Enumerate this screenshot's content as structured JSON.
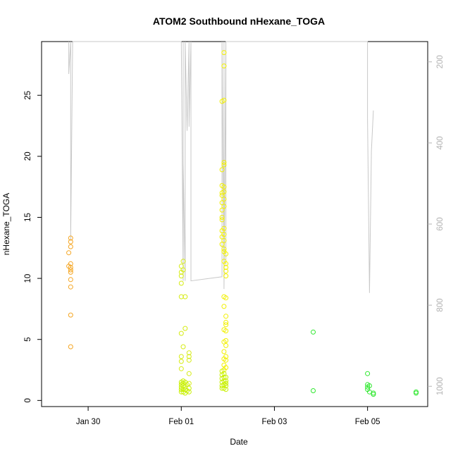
{
  "chart_data": {
    "type": "scatter",
    "title": "ATOM2 Southbound nHexane_TOGA",
    "xlabel": "Date",
    "ylabel": "nHexane_TOGA",
    "x_range": [
      "2017-01-29 00:00",
      "2017-02-06 07:00"
    ],
    "y_range": [
      -0.5,
      29.4
    ],
    "y_ticks": [
      0,
      5,
      10,
      15,
      20,
      25
    ],
    "x_ticks": [
      {
        "label": "Jan 30",
        "date": "2017-01-30 00:00"
      },
      {
        "label": "Feb 01",
        "date": "2017-02-01 00:00"
      },
      {
        "label": "Feb 03",
        "date": "2017-02-03 00:00"
      },
      {
        "label": "Feb 05",
        "date": "2017-02-05 00:00"
      }
    ],
    "right_axis": {
      "range": [
        1050,
        150
      ],
      "ticks": [
        200,
        400,
        600,
        800,
        1000
      ],
      "color": "#b3b3b3"
    },
    "grid": false,
    "marker": "open-circle",
    "series": [
      {
        "color": "#f5a623",
        "points": [
          [
            "2017-01-29 14:00",
            12.1
          ],
          [
            "2017-01-29 14:00",
            11.0
          ],
          [
            "2017-01-29 15:00",
            13.3
          ],
          [
            "2017-01-29 15:00",
            13.0
          ],
          [
            "2017-01-29 15:00",
            12.6
          ],
          [
            "2017-01-29 15:00",
            11.2
          ],
          [
            "2017-01-29 15:00",
            10.9
          ],
          [
            "2017-01-29 15:00",
            10.7
          ],
          [
            "2017-01-29 15:00",
            10.5
          ],
          [
            "2017-01-29 15:00",
            9.9
          ],
          [
            "2017-01-29 15:00",
            9.3
          ],
          [
            "2017-01-29 15:00",
            7.0
          ],
          [
            "2017-01-29 15:00",
            4.4
          ]
        ]
      },
      {
        "color": "#d6ec14",
        "points": [
          [
            "2017-02-01 00:00",
            11.0
          ],
          [
            "2017-02-01 01:00",
            10.7
          ],
          [
            "2017-02-01 00:00",
            10.5
          ],
          [
            "2017-02-01 00:00",
            10.2
          ],
          [
            "2017-02-01 00:00",
            9.6
          ],
          [
            "2017-02-01 00:00",
            8.5
          ],
          [
            "2017-02-01 02:00",
            8.5
          ],
          [
            "2017-02-01 01:00",
            11.4
          ],
          [
            "2017-02-01 00:00",
            5.5
          ],
          [
            "2017-02-01 02:00",
            5.9
          ],
          [
            "2017-02-01 01:00",
            4.4
          ],
          [
            "2017-02-01 00:00",
            3.6
          ],
          [
            "2017-02-01 00:00",
            3.2
          ],
          [
            "2017-02-01 00:00",
            2.6
          ],
          [
            "2017-02-01 04:00",
            3.9
          ],
          [
            "2017-02-01 04:00",
            3.6
          ],
          [
            "2017-02-01 04:00",
            3.3
          ],
          [
            "2017-02-01 04:00",
            2.2
          ],
          [
            "2017-02-01 04:00",
            1.4
          ]
        ]
      },
      {
        "color": "#f2f000",
        "points": [
          [
            "2017-02-01 22:00",
            28.5
          ],
          [
            "2017-02-01 22:00",
            27.4
          ],
          [
            "2017-02-01 22:00",
            24.6
          ],
          [
            "2017-02-01 21:00",
            24.5
          ],
          [
            "2017-02-01 22:00",
            19.5
          ],
          [
            "2017-02-01 22:00",
            19.3
          ],
          [
            "2017-02-01 21:00",
            18.9
          ],
          [
            "2017-02-01 21:00",
            17.6
          ],
          [
            "2017-02-01 22:00",
            17.5
          ],
          [
            "2017-02-01 22:00",
            17.1
          ],
          [
            "2017-02-01 21:00",
            17.0
          ],
          [
            "2017-02-01 21:00",
            16.8
          ],
          [
            "2017-02-01 22:00",
            16.5
          ],
          [
            "2017-02-01 21:00",
            16.2
          ],
          [
            "2017-02-01 22:00",
            15.9
          ],
          [
            "2017-02-01 21:00",
            15.6
          ],
          [
            "2017-02-01 21:00",
            15.0
          ],
          [
            "2017-02-01 21:00",
            14.8
          ],
          [
            "2017-02-01 22:00",
            14.1
          ],
          [
            "2017-02-01 21:00",
            13.9
          ],
          [
            "2017-02-01 22:00",
            13.6
          ],
          [
            "2017-02-01 21:00",
            13.4
          ],
          [
            "2017-02-01 22:00",
            13.1
          ],
          [
            "2017-02-01 21:00",
            12.8
          ],
          [
            "2017-02-01 22:00",
            12.4
          ],
          [
            "2017-02-01 22:00",
            12.2
          ],
          [
            "2017-02-01 23:00",
            12.0
          ],
          [
            "2017-02-01 22:00",
            11.4
          ],
          [
            "2017-02-01 23:00",
            11.2
          ],
          [
            "2017-02-01 23:00",
            10.9
          ],
          [
            "2017-02-01 23:00",
            10.6
          ],
          [
            "2017-02-01 23:00",
            10.2
          ],
          [
            "2017-02-01 22:00",
            8.5
          ],
          [
            "2017-02-01 23:00",
            8.4
          ],
          [
            "2017-02-01 22:00",
            7.7
          ],
          [
            "2017-02-01 23:00",
            6.9
          ],
          [
            "2017-02-01 23:00",
            6.4
          ],
          [
            "2017-02-01 23:00",
            6.2
          ],
          [
            "2017-02-01 22:00",
            5.8
          ],
          [
            "2017-02-01 23:00",
            5.7
          ],
          [
            "2017-02-01 23:00",
            4.9
          ],
          [
            "2017-02-01 22:00",
            4.8
          ],
          [
            "2017-02-01 23:00",
            4.5
          ],
          [
            "2017-02-01 22:00",
            4.0
          ],
          [
            "2017-02-01 23:00",
            3.6
          ],
          [
            "2017-02-01 22:00",
            3.4
          ],
          [
            "2017-02-01 23:00",
            3.3
          ],
          [
            "2017-02-01 22:00",
            2.9
          ],
          [
            "2017-02-01 23:00",
            2.7
          ],
          [
            "2017-02-01 22:00",
            2.5
          ]
        ]
      },
      {
        "color": "#c8f000",
        "points": [
          [
            "2017-02-01 00:00",
            1.5
          ],
          [
            "2017-02-01 00:00",
            1.3
          ],
          [
            "2017-02-01 00:00",
            1.1
          ],
          [
            "2017-02-01 00:00",
            0.9
          ],
          [
            "2017-02-01 00:00",
            0.7
          ],
          [
            "2017-02-01 01:00",
            1.6
          ],
          [
            "2017-02-01 01:00",
            1.4
          ],
          [
            "2017-02-01 01:00",
            1.2
          ],
          [
            "2017-02-01 01:00",
            0.9
          ],
          [
            "2017-02-01 01:00",
            0.7
          ],
          [
            "2017-02-01 02:00",
            1.5
          ],
          [
            "2017-02-01 02:00",
            1.1
          ],
          [
            "2017-02-01 02:00",
            0.9
          ],
          [
            "2017-02-01 02:00",
            0.6
          ],
          [
            "2017-02-01 03:00",
            1.3
          ],
          [
            "2017-02-01 03:00",
            0.8
          ],
          [
            "2017-02-01 04:00",
            1.0
          ],
          [
            "2017-02-01 04:00",
            0.7
          ],
          [
            "2017-02-01 21:00",
            2.4
          ],
          [
            "2017-02-01 21:00",
            2.1
          ],
          [
            "2017-02-01 21:00",
            1.8
          ],
          [
            "2017-02-01 21:00",
            1.5
          ],
          [
            "2017-02-01 21:00",
            1.2
          ],
          [
            "2017-02-01 21:00",
            1.0
          ],
          [
            "2017-02-01 22:00",
            2.2
          ],
          [
            "2017-02-01 22:00",
            1.9
          ],
          [
            "2017-02-01 22:00",
            1.6
          ],
          [
            "2017-02-01 22:00",
            1.3
          ],
          [
            "2017-02-01 22:00",
            1.0
          ],
          [
            "2017-02-01 23:00",
            1.9
          ],
          [
            "2017-02-01 23:00",
            1.6
          ],
          [
            "2017-02-01 23:00",
            1.4
          ],
          [
            "2017-02-01 23:00",
            1.2
          ],
          [
            "2017-02-01 23:00",
            0.9
          ]
        ]
      },
      {
        "color": "#2ee82e",
        "points": [
          [
            "2017-02-03 20:00",
            5.6
          ],
          [
            "2017-02-03 20:00",
            0.8
          ],
          [
            "2017-02-05 00:00",
            2.2
          ],
          [
            "2017-02-05 00:00",
            1.3
          ],
          [
            "2017-02-05 00:00",
            1.1
          ],
          [
            "2017-02-05 00:00",
            0.9
          ],
          [
            "2017-02-05 01:00",
            0.7
          ],
          [
            "2017-02-05 01:00",
            1.2
          ],
          [
            "2017-02-05 03:00",
            0.6
          ],
          [
            "2017-02-05 03:00",
            0.5
          ],
          [
            "2017-02-06 01:00",
            0.7
          ],
          [
            "2017-02-06 01:00",
            0.6
          ]
        ]
      }
    ],
    "altitude_trace": {
      "color": "#c8c8c8",
      "axis": "right",
      "points": [
        [
          "2017-01-29 14:00",
          150
        ],
        [
          "2017-01-29 14:00",
          230
        ],
        [
          "2017-01-29 15:00",
          150
        ],
        [
          "2017-01-29 15:00",
          640
        ],
        [
          "2017-01-29 16:00",
          150
        ],
        [
          "2017-02-01 00:00",
          150
        ],
        [
          "2017-02-01 01:00",
          740
        ],
        [
          "2017-02-01 01:00",
          150
        ],
        [
          "2017-02-01 01:00",
          450
        ],
        [
          "2017-02-01 02:00",
          740
        ],
        [
          "2017-02-01 02:00",
          150
        ],
        [
          "2017-02-01 03:00",
          370
        ],
        [
          "2017-02-01 04:00",
          150
        ],
        [
          "2017-02-01 04:00",
          360
        ],
        [
          "2017-02-01 05:00",
          150
        ],
        [
          "2017-02-01 05:00",
          740
        ],
        [
          "2017-02-01 21:00",
          730
        ],
        [
          "2017-02-01 21:00",
          150
        ],
        [
          "2017-02-01 22:00",
          720
        ],
        [
          "2017-02-01 22:00",
          150
        ],
        [
          "2017-02-01 22:00",
          760
        ],
        [
          "2017-02-01 23:00",
          150
        ],
        [
          "2017-02-01 23:00",
          700
        ],
        [
          "2017-02-01 23:00",
          150
        ],
        [
          "2017-02-02 00:00",
          150
        ],
        [
          "2017-02-05 00:00",
          150
        ],
        [
          "2017-02-05 00:00",
          340
        ],
        [
          "2017-02-05 01:00",
          770
        ],
        [
          "2017-02-05 02:00",
          420
        ],
        [
          "2017-02-05 03:00",
          320
        ]
      ]
    }
  }
}
